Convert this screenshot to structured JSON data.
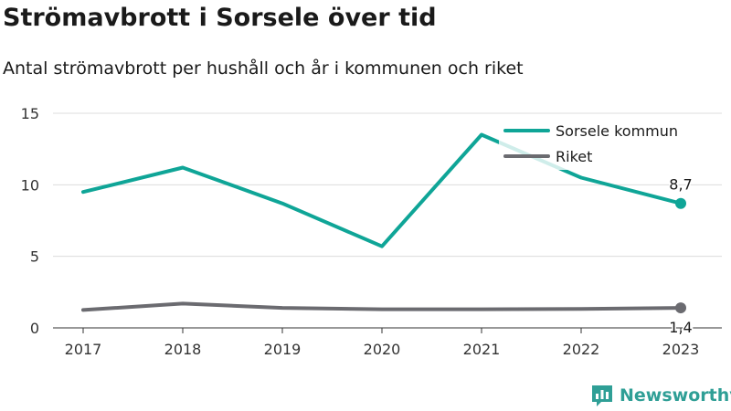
{
  "title": "Strömavbrott i Sorsele över tid",
  "subtitle": "Antal strömavbrott per hushåll och år i kommunen och riket",
  "brand": {
    "name": "Newsworthy",
    "icon": "newsworthy-logo-icon",
    "color": "#2f9f96"
  },
  "chart_data": {
    "type": "line",
    "x": [
      "2017",
      "2018",
      "2019",
      "2020",
      "2021",
      "2022",
      "2023"
    ],
    "ylim": [
      0,
      15
    ],
    "yticks": [
      "0",
      "5",
      "10",
      "15"
    ],
    "grid": true,
    "legend_position": "top-right",
    "series": [
      {
        "name": "Sorsele kommun",
        "color": "#0fa597",
        "values": [
          9.5,
          11.2,
          8.7,
          5.7,
          13.5,
          10.5,
          8.7
        ],
        "end_label": "8,7"
      },
      {
        "name": "Riket",
        "color": "#6b6b70",
        "values": [
          1.25,
          1.7,
          1.4,
          1.3,
          1.3,
          1.33,
          1.4
        ],
        "end_label": "1,4"
      }
    ]
  }
}
